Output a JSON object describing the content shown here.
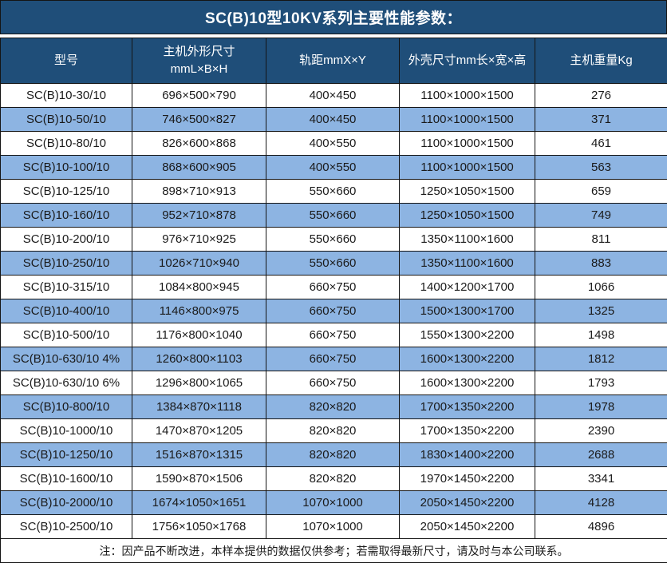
{
  "title": "SC(B)10型10KV系列主要性能参数：",
  "colors": {
    "header_bg": "#1F4E79",
    "stripe_bg": "#8DB4E2",
    "border": "#141414",
    "header_text": "#FFFFFF",
    "body_text": "#1A1A1A"
  },
  "table": {
    "headers": [
      {
        "label": "型号",
        "label2": ""
      },
      {
        "label": "主机外形尺寸",
        "label2": "mmL×B×H"
      },
      {
        "label": "轨距mmX×Y",
        "label2": ""
      },
      {
        "label": "外壳尺寸mm长×宽×高",
        "label2": ""
      },
      {
        "label": "主机重量Kg",
        "label2": ""
      }
    ],
    "rows": [
      [
        "SC(B)10-30/10",
        "696×500×790",
        "400×450",
        "1100×1000×1500",
        "276"
      ],
      [
        "SC(B)10-50/10",
        "746×500×827",
        "400×450",
        "1100×1000×1500",
        "371"
      ],
      [
        "SC(B)10-80/10",
        "826×600×868",
        "400×550",
        "1100×1000×1500",
        "461"
      ],
      [
        "SC(B)10-100/10",
        "868×600×905",
        "400×550",
        "1100×1000×1500",
        "563"
      ],
      [
        "SC(B)10-125/10",
        "898×710×913",
        "550×660",
        "1250×1050×1500",
        "659"
      ],
      [
        "SC(B)10-160/10",
        "952×710×878",
        "550×660",
        "1250×1050×1500",
        "749"
      ],
      [
        "SC(B)10-200/10",
        "976×710×925",
        "550×660",
        "1350×1100×1600",
        "811"
      ],
      [
        "SC(B)10-250/10",
        "1026×710×940",
        "550×660",
        "1350×1100×1600",
        "883"
      ],
      [
        "SC(B)10-315/10",
        "1084×800×945",
        "660×750",
        "1400×1200×1700",
        "1066"
      ],
      [
        "SC(B)10-400/10",
        "1146×800×975",
        "660×750",
        "1500×1300×1700",
        "1325"
      ],
      [
        "SC(B)10-500/10",
        "1176×800×1040",
        "660×750",
        "1550×1300×2200",
        "1498"
      ],
      [
        "SC(B)10-630/10 4%",
        "1260×800×1103",
        "660×750",
        "1600×1300×2200",
        "1812"
      ],
      [
        "SC(B)10-630/10 6%",
        "1296×800×1065",
        "660×750",
        "1600×1300×2200",
        "1793"
      ],
      [
        "SC(B)10-800/10",
        "1384×870×1118",
        "820×820",
        "1700×1350×2200",
        "1978"
      ],
      [
        "SC(B)10-1000/10",
        "1470×870×1205",
        "820×820",
        "1700×1350×2200",
        "2390"
      ],
      [
        "SC(B)10-1250/10",
        "1516×870×1315",
        "820×820",
        "1830×1400×2200",
        "2688"
      ],
      [
        "SC(B)10-1600/10",
        "1590×870×1506",
        "820×820",
        "1970×1450×2200",
        "3341"
      ],
      [
        "SC(B)10-2000/10",
        "1674×1050×1651",
        "1070×1000",
        "2050×1450×2200",
        "4128"
      ],
      [
        "SC(B)10-2500/10",
        "1756×1050×1768",
        "1070×1000",
        "2050×1450×2200",
        "4896"
      ]
    ]
  },
  "footer": {
    "note": "注：因产品不断改进，本样本提供的数据仅供参考；若需取得最新尺寸，请及时与本公司联系。"
  }
}
